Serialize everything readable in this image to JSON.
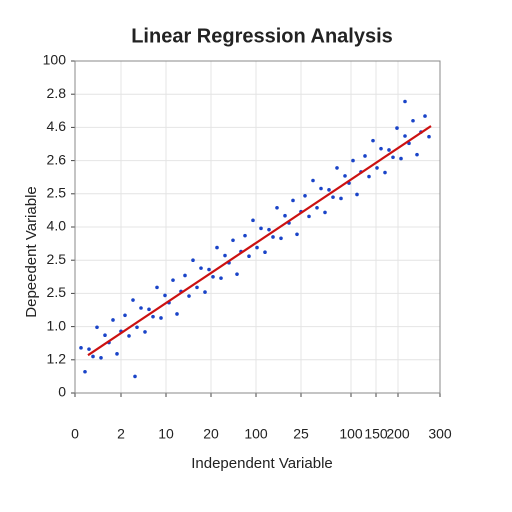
{
  "chart_data": {
    "type": "scatter",
    "title": "Linear Regression Analysis",
    "x_label": "Independent Variable",
    "y_label": "Depeedent Variable",
    "xlim": [
      0,
      365
    ],
    "ylim": [
      0,
      100
    ],
    "xticks": [
      0,
      {
        "value": 46,
        "label": "2"
      },
      {
        "value": 91,
        "label": "10"
      },
      {
        "value": 136,
        "label": "20"
      },
      {
        "value": 181,
        "label": "100"
      },
      {
        "value": 226,
        "label": "25"
      },
      {
        "value": 276,
        "label": "100"
      },
      {
        "value": 301,
        "label": "150"
      },
      {
        "value": 323,
        "label": "200"
      },
      {
        "value": 365,
        "label": "300"
      }
    ],
    "yticks": [
      0,
      {
        "value": 10,
        "label": "1.2"
      },
      {
        "value": 20,
        "label": "1.0"
      },
      {
        "value": 30,
        "label": "2.5"
      },
      {
        "value": 40,
        "label": "2.5"
      },
      {
        "value": 50,
        "label": "4.0"
      },
      {
        "value": 60,
        "label": "2.5"
      },
      {
        "value": 70,
        "label": "2.6"
      },
      {
        "value": 80,
        "label": "4.6"
      },
      {
        "value": 90,
        "label": "2.8"
      },
      100
    ],
    "grid": true,
    "color": "#1a44c8",
    "x": [
      6,
      10,
      14,
      18,
      22,
      26,
      30,
      34,
      38,
      42,
      46,
      50,
      54,
      58,
      62,
      66,
      70,
      74,
      78,
      82,
      86,
      90,
      94,
      98,
      102,
      106,
      110,
      114,
      118,
      122,
      126,
      130,
      134,
      138,
      142,
      146,
      150,
      154,
      158,
      162,
      166,
      170,
      174,
      178,
      182,
      186,
      190,
      194,
      198,
      202,
      206,
      210,
      214,
      218,
      222,
      226,
      230,
      234,
      238,
      242,
      246,
      250,
      254,
      258,
      262,
      266,
      270,
      274,
      278,
      282,
      286,
      290,
      294,
      298,
      302,
      306,
      310,
      314,
      318,
      322,
      326,
      330,
      334,
      338,
      342,
      346,
      350,
      354,
      330,
      60
    ],
    "values": [
      13.6,
      6.4,
      13.2,
      11.0,
      19.8,
      10.6,
      17.4,
      15.2,
      22.0,
      11.8,
      18.6,
      23.4,
      17.2,
      28.0,
      19.8,
      25.6,
      18.4,
      25.2,
      23.0,
      31.8,
      22.6,
      29.4,
      27.2,
      34.0,
      23.8,
      30.6,
      35.4,
      29.2,
      40.0,
      31.8,
      37.6,
      30.4,
      37.2,
      35.0,
      43.8,
      34.6,
      41.4,
      39.2,
      46.0,
      35.8,
      42.6,
      47.4,
      41.2,
      52.0,
      43.8,
      49.6,
      42.4,
      49.2,
      47.0,
      55.8,
      46.6,
      53.4,
      51.2,
      58.0,
      47.8,
      54.6,
      59.4,
      53.2,
      64.0,
      55.8,
      61.6,
      54.4,
      61.2,
      59.0,
      67.8,
      58.6,
      65.4,
      63.2,
      70.0,
      59.8,
      66.6,
      71.4,
      65.2,
      76.0,
      67.8,
      73.6,
      66.4,
      73.2,
      71.0,
      79.8,
      70.6,
      77.4,
      75.2,
      82.0,
      71.8,
      78.6,
      83.4,
      77.2,
      87.8,
      5.0
    ],
    "trendline": {
      "x": [
        13,
        356
      ],
      "values": [
        11.4,
        80.4
      ],
      "color": "#cc1111"
    }
  }
}
